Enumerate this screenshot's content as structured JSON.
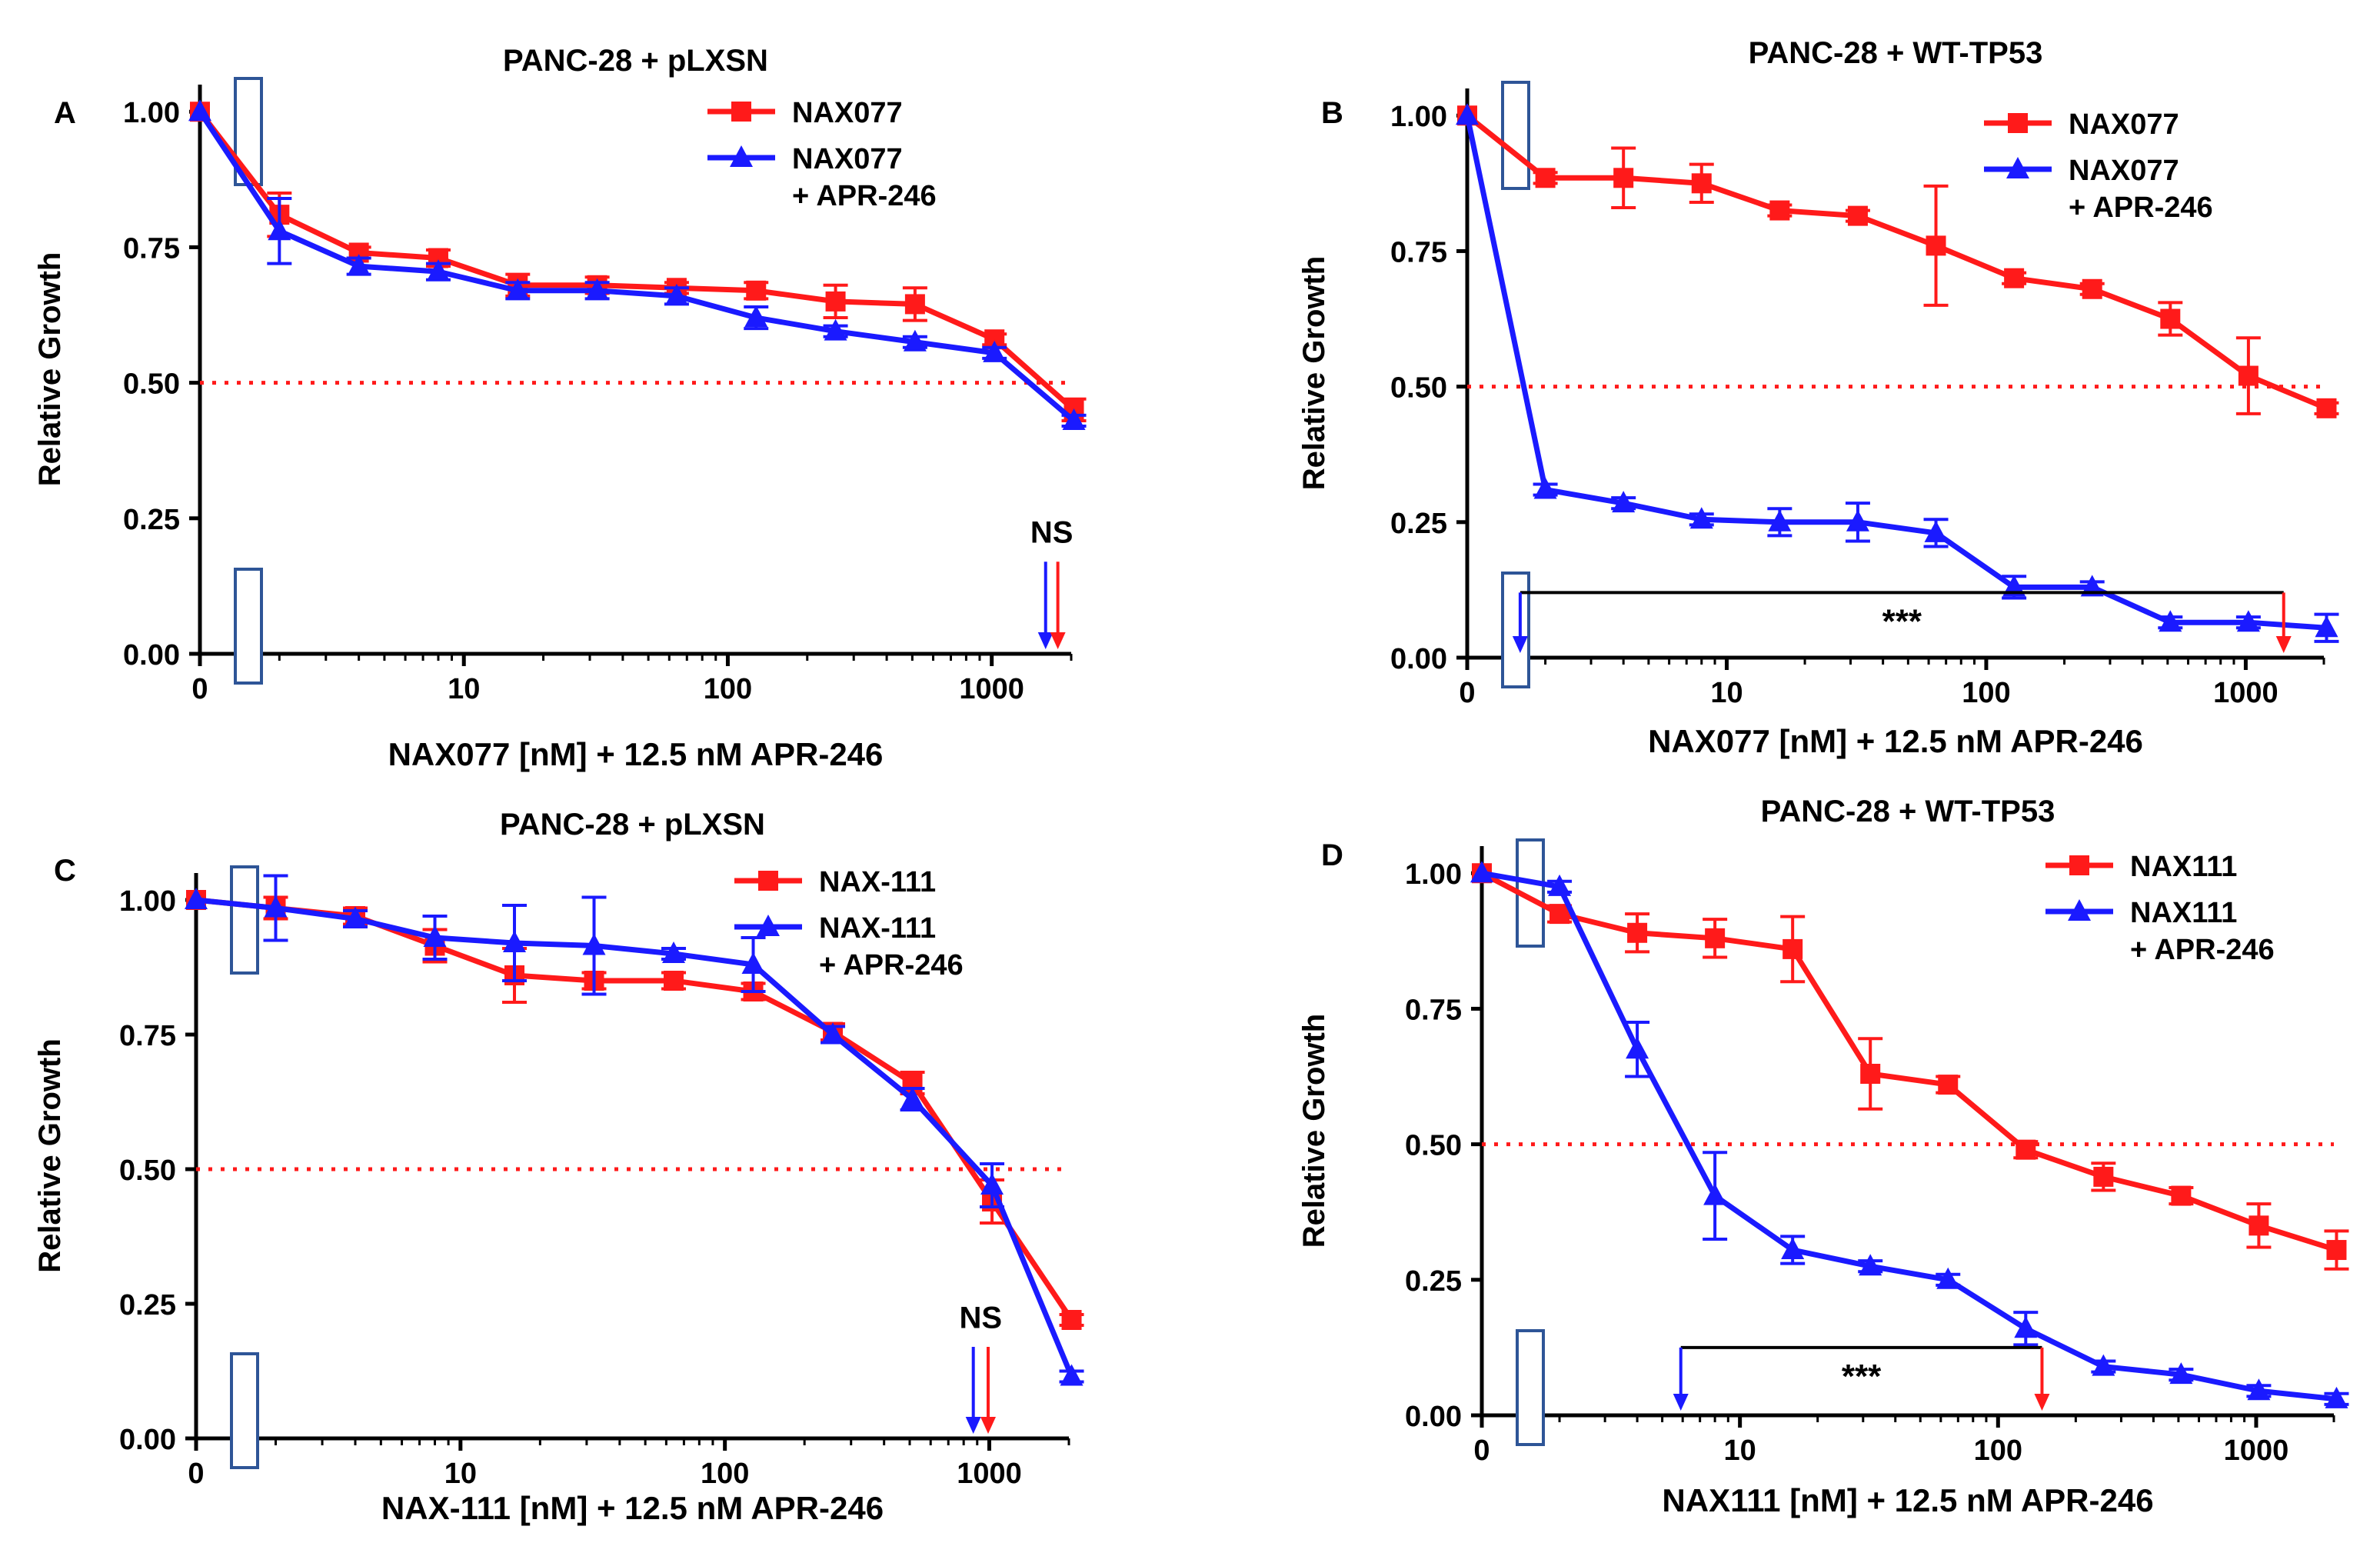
{
  "colors": {
    "red": "#ff1a1a",
    "blue": "#1a1aff",
    "axis": "#000000",
    "box": "#2e5597",
    "threshold": "#ff1a1a"
  },
  "chart_data": [
    {
      "type": "line",
      "panel": "A",
      "title": "PANC-28 + pLXSN",
      "xlabel": "NAX077 [nM] + 12.5 nM APR-246",
      "ylabel": "Relative Growth",
      "xscale": "log",
      "xlim": [
        1,
        2000
      ],
      "ylim": [
        0,
        1.05
      ],
      "x_ticks": [
        {
          "v": 1,
          "label": "0"
        },
        {
          "v": 10,
          "label": "10"
        },
        {
          "v": 100,
          "label": "100"
        },
        {
          "v": 1000,
          "label": "1000"
        }
      ],
      "y_ticks": [
        {
          "v": 0,
          "label": "0.00"
        },
        {
          "v": 0.25,
          "label": "0.25"
        },
        {
          "v": 0.5,
          "label": "0.50"
        },
        {
          "v": 0.75,
          "label": "0.75"
        },
        {
          "v": 1,
          "label": "1.00"
        }
      ],
      "threshold": 0.5,
      "legend": {
        "position": "top-right"
      },
      "series": [
        {
          "name": "NAX077",
          "legend_lines": [
            "NAX077"
          ],
          "color": "red",
          "marker": "square",
          "x": [
            1,
            2,
            4,
            8,
            16,
            32,
            64,
            128,
            256,
            512,
            1024,
            2048
          ],
          "y": [
            1.0,
            0.81,
            0.74,
            0.73,
            0.68,
            0.68,
            0.675,
            0.67,
            0.65,
            0.645,
            0.58,
            0.45
          ],
          "err": [
            0,
            0.04,
            0.01,
            0.015,
            0.02,
            0.015,
            0.01,
            0.015,
            0.03,
            0.03,
            0.01,
            0.02
          ]
        },
        {
          "name": "NAX077 + APR-246",
          "legend_lines": [
            "NAX077",
            "+ APR-246"
          ],
          "color": "blue",
          "marker": "triangle",
          "x": [
            1,
            2,
            4,
            8,
            16,
            32,
            64,
            128,
            256,
            512,
            1024,
            2048
          ],
          "y": [
            1.0,
            0.78,
            0.715,
            0.705,
            0.67,
            0.67,
            0.66,
            0.62,
            0.595,
            0.575,
            0.555,
            0.43
          ],
          "err": [
            0,
            0.06,
            0.015,
            0.015,
            0.015,
            0.015,
            0.015,
            0.02,
            0.01,
            0.01,
            0.01,
            0.01
          ]
        }
      ],
      "annotation": {
        "type": "NS",
        "label": "NS",
        "blue_x": 1600,
        "red_x": 1780
      }
    },
    {
      "type": "line",
      "panel": "B",
      "title": "PANC-28 + WT-TP53",
      "xlabel": "NAX077 [nM] + 12.5 nM APR-246",
      "ylabel": "Relative Growth",
      "xscale": "log",
      "xlim": [
        1,
        2000
      ],
      "ylim": [
        0,
        1.05
      ],
      "x_ticks": [
        {
          "v": 1,
          "label": "0"
        },
        {
          "v": 10,
          "label": "10"
        },
        {
          "v": 100,
          "label": "100"
        },
        {
          "v": 1000,
          "label": "1000"
        }
      ],
      "y_ticks": [
        {
          "v": 0,
          "label": "0.00"
        },
        {
          "v": 0.25,
          "label": "0.25"
        },
        {
          "v": 0.5,
          "label": "0.50"
        },
        {
          "v": 0.75,
          "label": "0.75"
        },
        {
          "v": 1,
          "label": "1.00"
        }
      ],
      "threshold": 0.5,
      "legend": {
        "position": "top-right"
      },
      "series": [
        {
          "name": "NAX077",
          "legend_lines": [
            "NAX077"
          ],
          "color": "red",
          "marker": "square",
          "x": [
            1,
            2,
            4,
            8,
            16,
            32,
            64,
            128,
            256,
            512,
            1024,
            2048
          ],
          "y": [
            1.0,
            0.885,
            0.885,
            0.875,
            0.825,
            0.815,
            0.76,
            0.7,
            0.68,
            0.625,
            0.52,
            0.46
          ],
          "err": [
            0,
            0.01,
            0.055,
            0.035,
            0.01,
            0.01,
            0.11,
            0.01,
            0.01,
            0.03,
            0.07,
            0.01
          ]
        },
        {
          "name": "NAX077 + APR-246",
          "legend_lines": [
            "NAX077",
            "+ APR-246"
          ],
          "color": "blue",
          "marker": "triangle",
          "x": [
            1,
            2,
            4,
            8,
            16,
            32,
            64,
            128,
            256,
            512,
            1024,
            2048
          ],
          "y": [
            1.0,
            0.31,
            0.285,
            0.255,
            0.25,
            0.25,
            0.23,
            0.13,
            0.13,
            0.065,
            0.065,
            0.055
          ],
          "err": [
            0,
            0.01,
            0.01,
            0.01,
            0.025,
            0.035,
            0.025,
            0.02,
            0.01,
            0.01,
            0.01,
            0.025
          ]
        }
      ],
      "annotation": {
        "type": "sig",
        "label": "***",
        "bar_y": 0.12,
        "blue_x": 1.6,
        "red_x": 1400
      }
    },
    {
      "type": "line",
      "panel": "C",
      "title": "PANC-28 + pLXSN",
      "xlabel": "NAX-111 [nM] + 12.5 nM APR-246",
      "ylabel": "Relative Growth",
      "xscale": "log",
      "xlim": [
        1,
        2000
      ],
      "ylim": [
        0,
        1.05
      ],
      "x_ticks": [
        {
          "v": 1,
          "label": "0"
        },
        {
          "v": 10,
          "label": "10"
        },
        {
          "v": 100,
          "label": "100"
        },
        {
          "v": 1000,
          "label": "1000"
        }
      ],
      "y_ticks": [
        {
          "v": 0,
          "label": "0.00"
        },
        {
          "v": 0.25,
          "label": "0.25"
        },
        {
          "v": 0.5,
          "label": "0.50"
        },
        {
          "v": 0.75,
          "label": "0.75"
        },
        {
          "v": 1,
          "label": "1.00"
        }
      ],
      "threshold": 0.5,
      "legend": {
        "position": "top-right"
      },
      "series": [
        {
          "name": "NAX-111",
          "legend_lines": [
            "NAX-111"
          ],
          "color": "red",
          "marker": "square",
          "x": [
            1,
            2,
            4,
            8,
            16,
            32,
            64,
            128,
            256,
            512,
            1024,
            2048
          ],
          "y": [
            1.0,
            0.985,
            0.97,
            0.915,
            0.86,
            0.85,
            0.85,
            0.83,
            0.755,
            0.66,
            0.44,
            0.22
          ],
          "err": [
            0,
            0.02,
            0.015,
            0.03,
            0.05,
            0.015,
            0.015,
            0.015,
            0.015,
            0.02,
            0.04,
            0.01
          ]
        },
        {
          "name": "NAX-111 + APR-246",
          "legend_lines": [
            "NAX-111",
            "+ APR-246"
          ],
          "color": "blue",
          "marker": "triangle",
          "x": [
            1,
            2,
            4,
            8,
            16,
            32,
            64,
            128,
            256,
            512,
            1024,
            2048
          ],
          "y": [
            1.0,
            0.985,
            0.965,
            0.93,
            0.92,
            0.915,
            0.9,
            0.88,
            0.75,
            0.63,
            0.47,
            0.115
          ],
          "err": [
            0,
            0.06,
            0.015,
            0.04,
            0.07,
            0.09,
            0.01,
            0.05,
            0.015,
            0.02,
            0.04,
            0.01
          ]
        }
      ],
      "annotation": {
        "type": "NS",
        "label": "NS",
        "blue_x": 870,
        "red_x": 990
      }
    },
    {
      "type": "line",
      "panel": "D",
      "title": "PANC-28 + WT-TP53",
      "xlabel": "NAX111 [nM] + 12.5 nM APR-246",
      "ylabel": "Relative Growth",
      "xscale": "log",
      "xlim": [
        1,
        2000
      ],
      "ylim": [
        0,
        1.05
      ],
      "x_ticks": [
        {
          "v": 1,
          "label": "0"
        },
        {
          "v": 10,
          "label": "10"
        },
        {
          "v": 100,
          "label": "100"
        },
        {
          "v": 1000,
          "label": "1000"
        }
      ],
      "y_ticks": [
        {
          "v": 0,
          "label": "0.00"
        },
        {
          "v": 0.25,
          "label": "0.25"
        },
        {
          "v": 0.5,
          "label": "0.50"
        },
        {
          "v": 0.75,
          "label": "0.75"
        },
        {
          "v": 1,
          "label": "1.00"
        }
      ],
      "threshold": 0.5,
      "legend": {
        "position": "top-right"
      },
      "series": [
        {
          "name": "NAX111",
          "legend_lines": [
            "NAX111"
          ],
          "color": "red",
          "marker": "square",
          "x": [
            1,
            2,
            4,
            8,
            16,
            32,
            64,
            128,
            256,
            512,
            1024,
            2048
          ],
          "y": [
            1.0,
            0.925,
            0.89,
            0.88,
            0.86,
            0.63,
            0.61,
            0.49,
            0.44,
            0.405,
            0.35,
            0.305
          ],
          "err": [
            0,
            0.015,
            0.035,
            0.035,
            0.06,
            0.065,
            0.015,
            0.015,
            0.025,
            0.015,
            0.04,
            0.035
          ]
        },
        {
          "name": "NAX111 + APR-246",
          "legend_lines": [
            "NAX111",
            "+ APR-246"
          ],
          "color": "blue",
          "marker": "triangle",
          "x": [
            1,
            2,
            4,
            8,
            16,
            32,
            64,
            128,
            256,
            512,
            1024,
            2048
          ],
          "y": [
            1.0,
            0.975,
            0.675,
            0.405,
            0.305,
            0.275,
            0.25,
            0.16,
            0.09,
            0.075,
            0.045,
            0.03
          ],
          "err": [
            0,
            0.01,
            0.05,
            0.08,
            0.025,
            0.01,
            0.01,
            0.03,
            0.01,
            0.01,
            0.01,
            0.01
          ]
        }
      ],
      "annotation": {
        "type": "sig",
        "label": "***",
        "bar_y": 0.125,
        "blue_x": 5.9,
        "red_x": 148
      }
    }
  ]
}
